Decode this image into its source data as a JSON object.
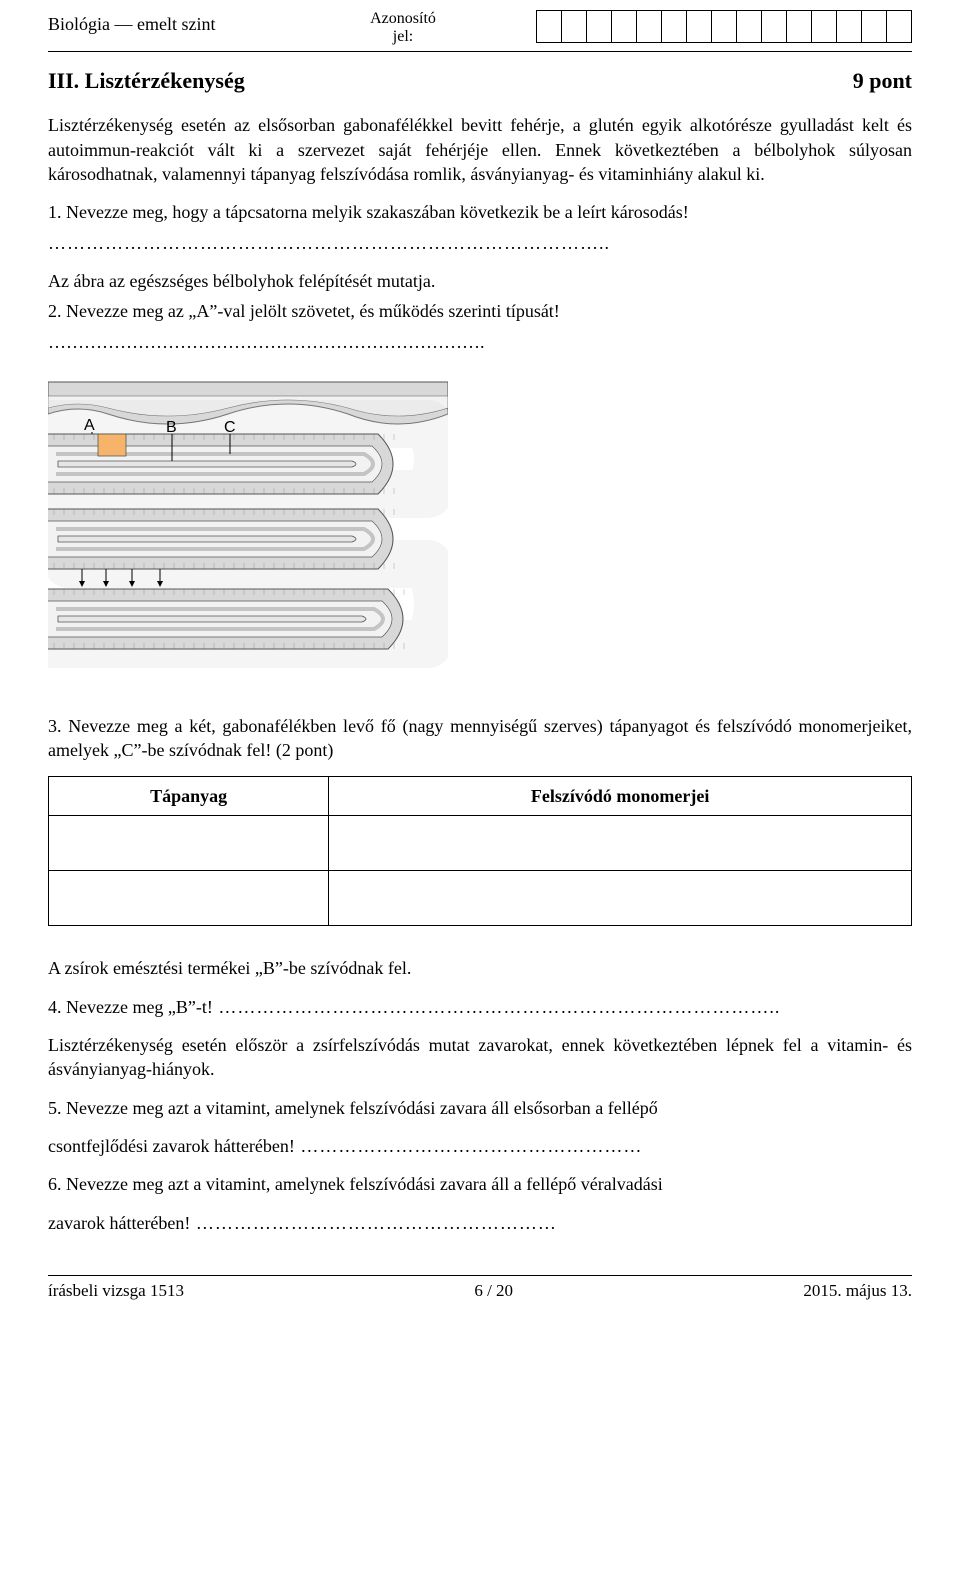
{
  "header": {
    "subject_level": "Biológia — emelt szint",
    "id_label_line1": "Azonosító",
    "id_label_line2": "jel:",
    "box_count": 15
  },
  "section": {
    "number_title": "III. Lisztérzékenység",
    "points": "9 pont"
  },
  "intro": "Lisztérzékenység esetén az elsősorban gabonafélékkel bevitt fehérje, a glutén egyik alkotó­része gyulladást kelt és autoimmun-reakciót vált ki a szervezet saját fehérjéje ellen. Ennek következtében a bélbolyhok súlyosan károsodhatnak, valamennyi tápanyag felszívódása romlik, ásványianyag- és vitaminhiány alakul ki.",
  "q1": "1. Nevezze meg, hogy a tápcsatorna melyik szakaszában következik be a leírt károsodás!",
  "fig_lead": "Az ábra az egészséges bélbolyhok felépítését mutatja.",
  "q2": "2. Nevezze meg az „A”-val jelölt szövetet, és működés szerinti típusát!",
  "figure": {
    "labels": {
      "A": "A",
      "B": "B",
      "C": "C"
    },
    "colors": {
      "epithelium": "#d8d8d8",
      "stroma": "#f2f2f2",
      "vessel": "#bfbfbf",
      "lymph_fill": "#e6e6e6",
      "highlight": "#f5b46a",
      "outline": "#555555",
      "background": "#ffffff"
    }
  },
  "q3": "3. Nevezze meg a két, gabonafélékben levő fő (nagy mennyiségű szerves) tápanyagot és felszívódó monomerjeiket, amelyek „C”-be szívódnak fel! (2 pont)",
  "table": {
    "col1": "Tápanyag",
    "col2": "Felszívódó monomerjei"
  },
  "p_fat": "A zsírok emésztési termékei „B”-be szívódnak fel.",
  "q4_prefix": "4. Nevezze meg „B”-t!",
  "q4_dots": " ……………………………………………………………………………..",
  "p_liszt2": "Lisztérzékenység esetén először a zsírfelszívódás mutat zavarokat, ennek következtében lépnek fel a vitamin- és ásványianyag-hiányok.",
  "q5": "5. Nevezze meg azt a vitamint, amelynek felszívódási zavara áll elsősorban a fellépő",
  "q5b_prefix": "csontfejlődési zavarok hátterében!",
  "q5b_dots": " ………………………………………………",
  "q6": "6. Nevezze meg azt a vitamint, amelynek felszívódási zavara áll a fellépő véralvadási",
  "q6b_prefix": "zavarok hátterében!",
  "q6b_dots": " …………………………………………………",
  "footer": {
    "left": "írásbeli vizsga 1513",
    "center": "6 / 20",
    "right": "2015. május 13."
  }
}
